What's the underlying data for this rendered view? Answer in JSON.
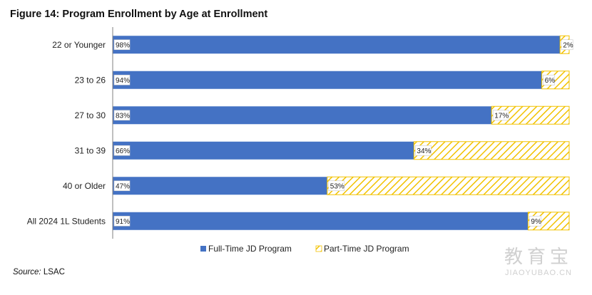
{
  "figure_title": "Figure 14: Program Enrollment by Age at Enrollment",
  "source_label": "Source:",
  "source_value": "LSAC",
  "watermark": {
    "logo": "教育宝",
    "url": "JIAOYUBAO.CN"
  },
  "colors": {
    "full_time": "#4472C4",
    "part_time": "#F2C200",
    "axis": "#7f7f7f"
  },
  "chart_data": {
    "type": "bar",
    "orientation": "horizontal",
    "stacked": true,
    "title": "Figure 14: Program Enrollment by Age at Enrollment",
    "categories": [
      "22 or Younger",
      "23 to 26",
      "27 to 30",
      "31 to 39",
      "40 or Older",
      "All 2024 1L Students"
    ],
    "series": [
      {
        "name": "Full-Time JD Program",
        "values": [
          98,
          94,
          83,
          66,
          47,
          91
        ],
        "labels": [
          "98%",
          "94%",
          "83%",
          "66%",
          "47%",
          "91%"
        ],
        "color": "#4472C4",
        "fill": "solid"
      },
      {
        "name": "Part-Time JD Program",
        "values": [
          2,
          6,
          17,
          34,
          53,
          9
        ],
        "labels": [
          "2%",
          "6%",
          "17%",
          "34%",
          "53%",
          "9%"
        ],
        "color": "#F2C200",
        "fill": "diagonal-hatch"
      }
    ],
    "xlim": [
      0,
      100
    ],
    "unit": "%",
    "grid": false,
    "legend_position": "bottom"
  }
}
